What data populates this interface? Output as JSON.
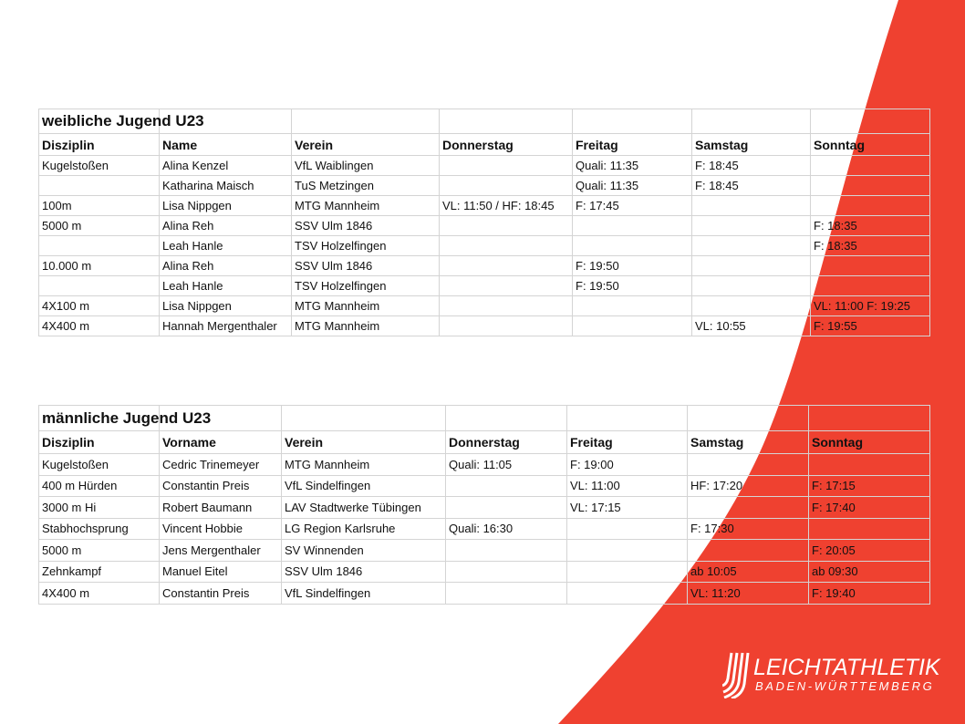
{
  "colors": {
    "accent": "#ef4130",
    "grid": "#d4d4d4"
  },
  "women": {
    "title": "weibliche Jugend U23",
    "headers": [
      "Disziplin",
      "Name",
      "Verein",
      "Donnerstag",
      "Freitag",
      "Samstag",
      "Sonntag"
    ],
    "rows": [
      [
        "Kugelstoßen",
        "Alina Kenzel",
        "VfL Waiblingen",
        "",
        "Quali: 11:35",
        "F: 18:45",
        ""
      ],
      [
        "",
        "Katharina Maisch",
        "TuS Metzingen",
        "",
        "Quali: 11:35",
        "F: 18:45",
        ""
      ],
      [
        "100m",
        "Lisa Nippgen",
        "MTG Mannheim",
        "VL: 11:50 / HF: 18:45",
        "F: 17:45",
        "",
        ""
      ],
      [
        "5000 m",
        "Alina Reh",
        "SSV Ulm 1846",
        "",
        "",
        "",
        "F: 18:35"
      ],
      [
        "",
        "Leah Hanle",
        "TSV Holzelfingen",
        "",
        "",
        "",
        "F: 18:35"
      ],
      [
        "10.000 m",
        "Alina Reh",
        "SSV Ulm 1846",
        "",
        "F: 19:50",
        "",
        ""
      ],
      [
        "",
        "Leah Hanle",
        "TSV Holzelfingen",
        "",
        "F: 19:50",
        "",
        ""
      ],
      [
        "4X100 m",
        "Lisa Nippgen",
        "MTG Mannheim",
        "",
        "",
        "",
        "VL: 11:00 F: 19:25"
      ],
      [
        "4X400 m",
        "Hannah Mergenthaler",
        "MTG Mannheim",
        "",
        "",
        "VL: 10:55",
        "F: 19:55"
      ]
    ]
  },
  "men": {
    "title": "männliche Jugend U23",
    "headers": [
      "Disziplin",
      "Vorname",
      "Verein",
      "Donnerstag",
      "Freitag",
      "Samstag",
      "Sonntag"
    ],
    "rows": [
      [
        "Kugelstoßen",
        "Cedric Trinemeyer",
        "MTG Mannheim",
        "Quali: 11:05",
        "F: 19:00",
        "",
        ""
      ],
      [
        "400 m Hürden",
        "Constantin Preis",
        "VfL Sindelfingen",
        "",
        "VL: 11:00",
        "HF: 17:20",
        "F: 17:15"
      ],
      [
        "3000 m Hi",
        "Robert Baumann",
        "LAV Stadtwerke Tübingen",
        "",
        "VL: 17:15",
        "",
        "F: 17:40"
      ],
      [
        "Stabhochsprung",
        "Vincent Hobbie",
        "LG Region Karlsruhe",
        "Quali: 16:30",
        "",
        "F: 17:30",
        ""
      ],
      [
        "5000 m",
        "Jens Mergenthaler",
        "SV Winnenden",
        "",
        "",
        "",
        "F: 20:05"
      ],
      [
        "Zehnkampf",
        "Manuel Eitel",
        "SSV Ulm 1846",
        "",
        "",
        "ab 10:05",
        "ab 09:30"
      ],
      [
        "4X400 m",
        "Constantin Preis",
        "VfL Sindelfingen",
        "",
        "",
        "VL: 11:20",
        "F: 19:40"
      ]
    ]
  },
  "logo": {
    "line1": "LEICHTATHLETIK",
    "line2": "BADEN-WÜRTTEMBERG"
  }
}
